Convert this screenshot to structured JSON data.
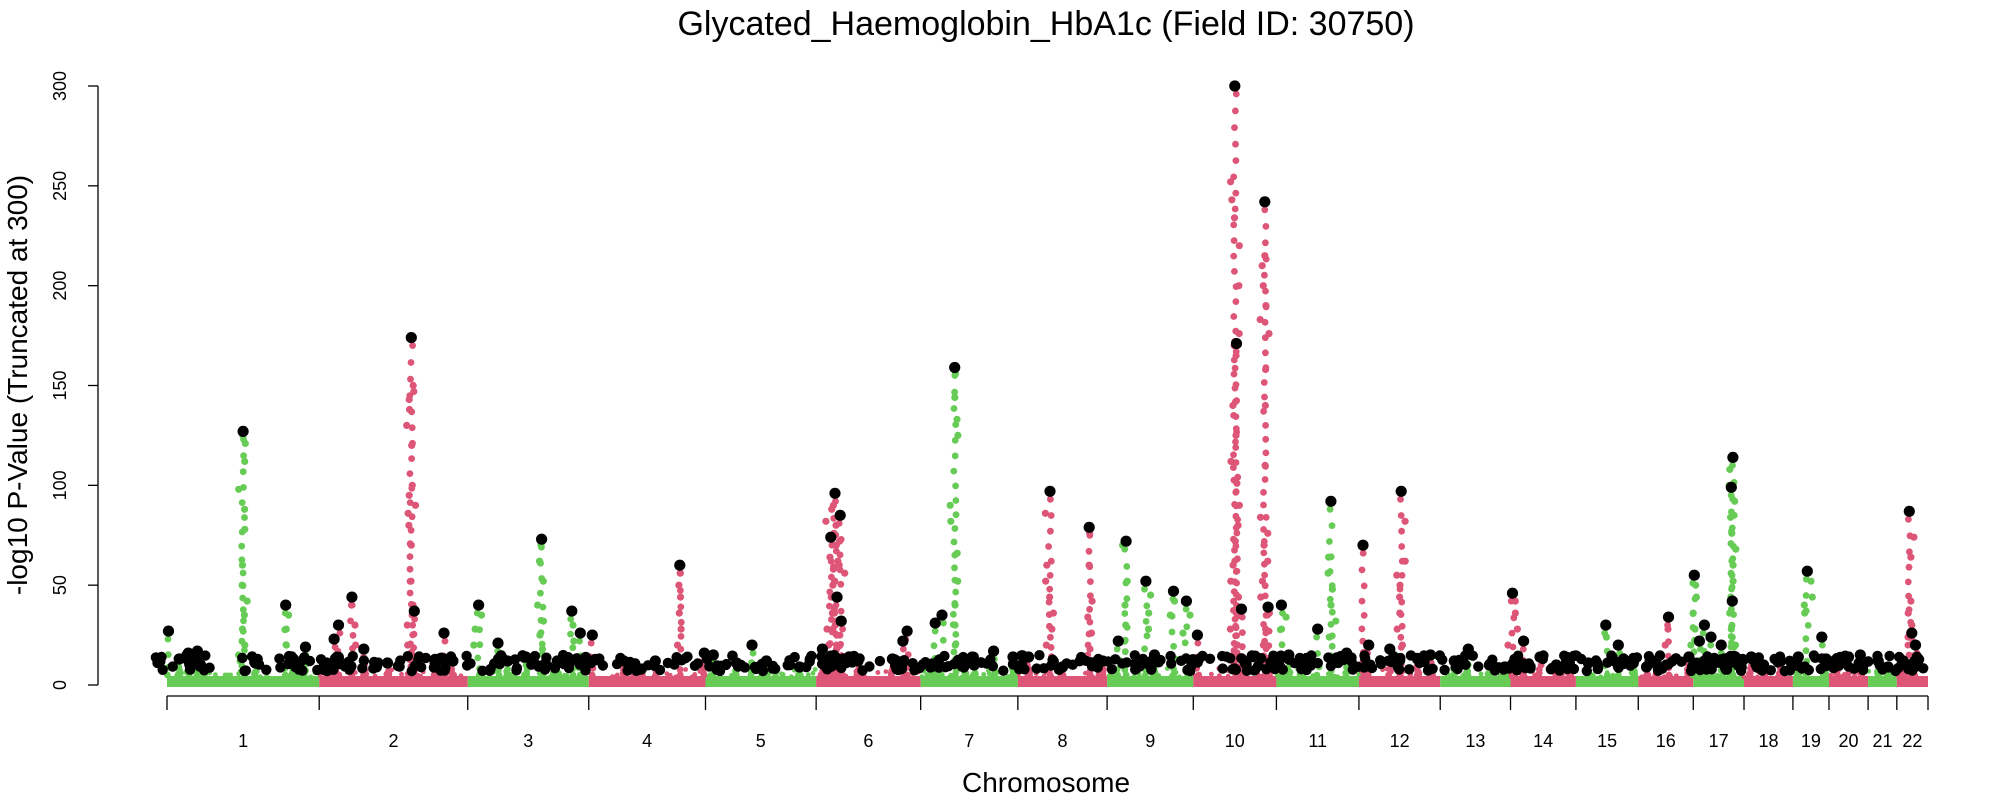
{
  "chart_data": {
    "type": "scatter",
    "subtype": "manhattan",
    "title": "Glycated_Haemoglobin_HbA1c (Field ID: 30750)",
    "xlabel": "Chromosome",
    "ylabel": "-log10 P-Value (Truncated at 300)",
    "ylim": [
      0,
      300
    ],
    "yticks": [
      0,
      50,
      100,
      150,
      200,
      250,
      300
    ],
    "colors": {
      "odd": "#66cc55",
      "even": "#dd5577",
      "lead": "#000000"
    },
    "chromosomes": [
      {
        "label": "1",
        "size": 249
      },
      {
        "label": "2",
        "size": 243
      },
      {
        "label": "3",
        "size": 198
      },
      {
        "label": "4",
        "size": 191
      },
      {
        "label": "5",
        "size": 181
      },
      {
        "label": "6",
        "size": 171
      },
      {
        "label": "7",
        "size": 159
      },
      {
        "label": "8",
        "size": 146
      },
      {
        "label": "9",
        "size": 141
      },
      {
        "label": "10",
        "size": 136
      },
      {
        "label": "11",
        "size": 135
      },
      {
        "label": "12",
        "size": 133
      },
      {
        "label": "13",
        "size": 115
      },
      {
        "label": "14",
        "size": 107
      },
      {
        "label": "15",
        "size": 102
      },
      {
        "label": "16",
        "size": 90
      },
      {
        "label": "17",
        "size": 83
      },
      {
        "label": "18",
        "size": 80
      },
      {
        "label": "19",
        "size": 59
      },
      {
        "label": "20",
        "size": 64
      },
      {
        "label": "21",
        "size": 47
      },
      {
        "label": "22",
        "size": 51
      }
    ],
    "peaks": [
      {
        "chr": "1",
        "pos": 0.01,
        "p": 27
      },
      {
        "chr": "1",
        "pos": 0.08,
        "p": 13
      },
      {
        "chr": "1",
        "pos": 0.14,
        "p": 16
      },
      {
        "chr": "1",
        "pos": 0.2,
        "p": 17
      },
      {
        "chr": "1",
        "pos": 0.5,
        "p": 127,
        "cluster": [
          125,
          121,
          112,
          98,
          88,
          78,
          60,
          50,
          42,
          35,
          28,
          20,
          15,
          12
        ]
      },
      {
        "chr": "1",
        "pos": 0.58,
        "p": 11
      },
      {
        "chr": "1",
        "pos": 0.78,
        "p": 40,
        "cluster": [
          35,
          28,
          20
        ]
      },
      {
        "chr": "1",
        "pos": 0.83,
        "p": 13
      },
      {
        "chr": "1",
        "pos": 0.91,
        "p": 19
      },
      {
        "chr": "2",
        "pos": 0.05,
        "p": 11
      },
      {
        "chr": "2",
        "pos": 0.1,
        "p": 23
      },
      {
        "chr": "2",
        "pos": 0.13,
        "p": 30
      },
      {
        "chr": "2",
        "pos": 0.22,
        "p": 44,
        "cluster": [
          40,
          30,
          20
        ]
      },
      {
        "chr": "2",
        "pos": 0.3,
        "p": 18
      },
      {
        "chr": "2",
        "pos": 0.46,
        "p": 11
      },
      {
        "chr": "2",
        "pos": 0.62,
        "p": 174,
        "cluster": [
          150,
          147,
          143,
          138,
          130,
          120,
          100,
          95,
          90,
          86,
          80,
          70,
          52,
          40,
          30,
          20,
          15
        ]
      },
      {
        "chr": "2",
        "pos": 0.64,
        "p": 37
      },
      {
        "chr": "2",
        "pos": 0.78,
        "p": 11
      },
      {
        "chr": "2",
        "pos": 0.84,
        "p": 26
      },
      {
        "chr": "2",
        "pos": 0.9,
        "p": 12
      },
      {
        "chr": "3",
        "pos": 0.09,
        "p": 40,
        "cluster": [
          35,
          28,
          20
        ]
      },
      {
        "chr": "3",
        "pos": 0.25,
        "p": 21
      },
      {
        "chr": "3",
        "pos": 0.33,
        "p": 12
      },
      {
        "chr": "3",
        "pos": 0.48,
        "p": 14
      },
      {
        "chr": "3",
        "pos": 0.61,
        "p": 73,
        "cluster": [
          70,
          62,
          52,
          40,
          32,
          25,
          18
        ]
      },
      {
        "chr": "3",
        "pos": 0.74,
        "p": 12
      },
      {
        "chr": "3",
        "pos": 0.86,
        "p": 37,
        "cluster": [
          30,
          22
        ]
      },
      {
        "chr": "3",
        "pos": 0.93,
        "p": 26
      },
      {
        "chr": "4",
        "pos": 0.03,
        "p": 25
      },
      {
        "chr": "4",
        "pos": 0.3,
        "p": 12
      },
      {
        "chr": "4",
        "pos": 0.45,
        "p": 8
      },
      {
        "chr": "4",
        "pos": 0.57,
        "p": 12
      },
      {
        "chr": "4",
        "pos": 0.78,
        "p": 60,
        "cluster": [
          56,
          50,
          44,
          36,
          28,
          20
        ]
      },
      {
        "chr": "4",
        "pos": 0.99,
        "p": 16
      },
      {
        "chr": "5",
        "pos": 0.07,
        "p": 15
      },
      {
        "chr": "5",
        "pos": 0.28,
        "p": 11
      },
      {
        "chr": "5",
        "pos": 0.42,
        "p": 20
      },
      {
        "chr": "5",
        "pos": 0.55,
        "p": 12
      },
      {
        "chr": "5",
        "pos": 0.85,
        "p": 9
      },
      {
        "chr": "6",
        "pos": 0.06,
        "p": 18
      },
      {
        "chr": "6",
        "pos": 0.14,
        "p": 74,
        "cluster": [
          90,
          82,
          76,
          70,
          64,
          58,
          50,
          44,
          36,
          28,
          20,
          14
        ]
      },
      {
        "chr": "6",
        "pos": 0.18,
        "p": 96,
        "cluster": [
          88,
          80,
          72,
          60,
          52,
          44,
          36,
          28
        ]
      },
      {
        "chr": "6",
        "pos": 0.23,
        "p": 85,
        "cluster": [
          70,
          62,
          56,
          44,
          30,
          18
        ]
      },
      {
        "chr": "6",
        "pos": 0.2,
        "p": 44
      },
      {
        "chr": "6",
        "pos": 0.24,
        "p": 32
      },
      {
        "chr": "6",
        "pos": 0.4,
        "p": 12
      },
      {
        "chr": "6",
        "pos": 0.73,
        "p": 13
      },
      {
        "chr": "6",
        "pos": 0.83,
        "p": 22
      },
      {
        "chr": "6",
        "pos": 0.87,
        "p": 27
      },
      {
        "chr": "7",
        "pos": 0.1,
        "p": 9
      },
      {
        "chr": "7",
        "pos": 0.15,
        "p": 31
      },
      {
        "chr": "7",
        "pos": 0.22,
        "p": 35
      },
      {
        "chr": "7",
        "pos": 0.35,
        "p": 159,
        "cluster": [
          156,
          144,
          133,
          125,
          90,
          82,
          66,
          52,
          40,
          30,
          20
        ]
      },
      {
        "chr": "7",
        "pos": 0.45,
        "p": 12
      },
      {
        "chr": "7",
        "pos": 0.55,
        "p": 10
      },
      {
        "chr": "7",
        "pos": 0.75,
        "p": 17
      },
      {
        "chr": "7",
        "pos": 0.95,
        "p": 14
      },
      {
        "chr": "8",
        "pos": 0.12,
        "p": 14
      },
      {
        "chr": "8",
        "pos": 0.36,
        "p": 97,
        "cluster": [
          86,
          60,
          52,
          44,
          36,
          28,
          20
        ]
      },
      {
        "chr": "8",
        "pos": 0.5,
        "p": 9
      },
      {
        "chr": "8",
        "pos": 0.8,
        "p": 79,
        "cluster": [
          76,
          60,
          42,
          34,
          26,
          18
        ]
      },
      {
        "chr": "8",
        "pos": 0.95,
        "p": 12
      },
      {
        "chr": "9",
        "pos": 0.13,
        "p": 22
      },
      {
        "chr": "9",
        "pos": 0.22,
        "p": 72,
        "cluster": [
          70,
          52,
          40,
          30,
          22
        ]
      },
      {
        "chr": "9",
        "pos": 0.45,
        "p": 52,
        "cluster": [
          45,
          36,
          28
        ]
      },
      {
        "chr": "9",
        "pos": 0.55,
        "p": 15
      },
      {
        "chr": "9",
        "pos": 0.77,
        "p": 47,
        "cluster": [
          42,
          35
        ]
      },
      {
        "chr": "9",
        "pos": 0.92,
        "p": 42,
        "cluster": [
          35,
          26
        ]
      },
      {
        "chr": "10",
        "pos": 0.05,
        "p": 25
      },
      {
        "chr": "10",
        "pos": 0.5,
        "p": 300,
        "cluster": [
          252,
          243,
          234,
          220,
          200,
          176,
          172,
          165,
          140,
          125,
          112,
          101,
          90,
          80,
          72,
          60,
          52,
          44,
          36,
          28,
          20,
          15
        ]
      },
      {
        "chr": "10",
        "pos": 0.52,
        "p": 171
      },
      {
        "chr": "10",
        "pos": 0.58,
        "p": 38
      },
      {
        "chr": "10",
        "pos": 0.86,
        "p": 242,
        "cluster": [
          215,
          210,
          200,
          190,
          183,
          176,
          158,
          140,
          110,
          84,
          76,
          70,
          62,
          52,
          44,
          36,
          28,
          20
        ]
      },
      {
        "chr": "10",
        "pos": 0.9,
        "p": 39
      },
      {
        "chr": "11",
        "pos": 0.06,
        "p": 40,
        "cluster": [
          34,
          28
        ]
      },
      {
        "chr": "11",
        "pos": 0.15,
        "p": 15
      },
      {
        "chr": "11",
        "pos": 0.3,
        "p": 11
      },
      {
        "chr": "11",
        "pos": 0.5,
        "p": 28
      },
      {
        "chr": "11",
        "pos": 0.66,
        "p": 92,
        "cluster": [
          64,
          56,
          48,
          40,
          32,
          24
        ]
      },
      {
        "chr": "11",
        "pos": 0.85,
        "p": 16
      },
      {
        "chr": "12",
        "pos": 0.05,
        "p": 70
      },
      {
        "chr": "12",
        "pos": 0.12,
        "p": 20
      },
      {
        "chr": "12",
        "pos": 0.38,
        "p": 18
      },
      {
        "chr": "12",
        "pos": 0.52,
        "p": 97,
        "cluster": [
          82,
          62,
          55,
          50,
          44,
          36,
          28,
          20
        ]
      },
      {
        "chr": "12",
        "pos": 0.72,
        "p": 13
      },
      {
        "chr": "12",
        "pos": 0.88,
        "p": 15
      },
      {
        "chr": "13",
        "pos": 0.2,
        "p": 12
      },
      {
        "chr": "13",
        "pos": 0.4,
        "p": 18
      },
      {
        "chr": "13",
        "pos": 0.7,
        "p": 10
      },
      {
        "chr": "13",
        "pos": 0.92,
        "p": 9
      },
      {
        "chr": "14",
        "pos": 0.03,
        "p": 46,
        "cluster": [
          42,
          36,
          28,
          20
        ]
      },
      {
        "chr": "14",
        "pos": 0.2,
        "p": 22
      },
      {
        "chr": "14",
        "pos": 0.45,
        "p": 14
      },
      {
        "chr": "14",
        "pos": 0.7,
        "p": 10
      },
      {
        "chr": "14",
        "pos": 0.9,
        "p": 11
      },
      {
        "chr": "15",
        "pos": 0.2,
        "p": 11
      },
      {
        "chr": "15",
        "pos": 0.48,
        "p": 30,
        "cluster": [
          24
        ]
      },
      {
        "chr": "15",
        "pos": 0.68,
        "p": 20
      },
      {
        "chr": "15",
        "pos": 0.92,
        "p": 11
      },
      {
        "chr": "16",
        "pos": 0.15,
        "p": 9
      },
      {
        "chr": "16",
        "pos": 0.32,
        "p": 12
      },
      {
        "chr": "16",
        "pos": 0.55,
        "p": 34,
        "cluster": [
          28,
          20
        ]
      },
      {
        "chr": "16",
        "pos": 0.92,
        "p": 14
      },
      {
        "chr": "17",
        "pos": 0.02,
        "p": 55,
        "cluster": [
          50,
          44,
          36,
          28,
          20
        ]
      },
      {
        "chr": "17",
        "pos": 0.12,
        "p": 22
      },
      {
        "chr": "17",
        "pos": 0.22,
        "p": 30
      },
      {
        "chr": "17",
        "pos": 0.35,
        "p": 24
      },
      {
        "chr": "17",
        "pos": 0.55,
        "p": 20
      },
      {
        "chr": "17",
        "pos": 0.78,
        "p": 114,
        "cluster": [
          108,
          100,
          92,
          84,
          76,
          68,
          60,
          52,
          44,
          36,
          28,
          20
        ]
      },
      {
        "chr": "17",
        "pos": 0.75,
        "p": 99
      },
      {
        "chr": "17",
        "pos": 0.77,
        "p": 42
      },
      {
        "chr": "18",
        "pos": 0.15,
        "p": 14
      },
      {
        "chr": "18",
        "pos": 0.4,
        "p": 10
      },
      {
        "chr": "18",
        "pos": 0.75,
        "p": 12
      },
      {
        "chr": "19",
        "pos": 0.15,
        "p": 14
      },
      {
        "chr": "19",
        "pos": 0.4,
        "p": 57,
        "cluster": [
          52,
          44,
          40,
          36
        ]
      },
      {
        "chr": "19",
        "pos": 0.8,
        "p": 24
      },
      {
        "chr": "19",
        "pos": 0.92,
        "p": 13
      },
      {
        "chr": "20",
        "pos": 0.2,
        "p": 13
      },
      {
        "chr": "20",
        "pos": 0.5,
        "p": 14
      },
      {
        "chr": "20",
        "pos": 0.8,
        "p": 15
      },
      {
        "chr": "21",
        "pos": 0.35,
        "p": 12
      },
      {
        "chr": "21",
        "pos": 0.7,
        "p": 9
      },
      {
        "chr": "22",
        "pos": 0.2,
        "p": 12
      },
      {
        "chr": "22",
        "pos": 0.4,
        "p": 87,
        "cluster": [
          74,
          64,
          42,
          36,
          30,
          24
        ]
      },
      {
        "chr": "22",
        "pos": 0.48,
        "p": 26
      },
      {
        "chr": "22",
        "pos": 0.6,
        "p": 20
      }
    ]
  }
}
